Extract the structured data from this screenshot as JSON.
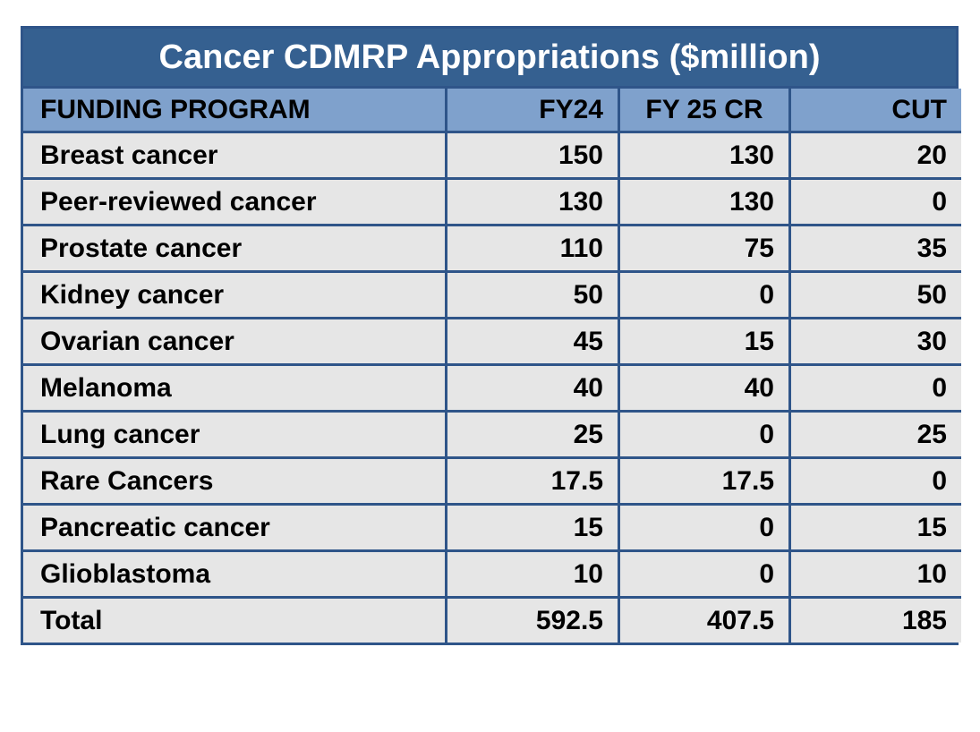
{
  "title": "Cancer CDMRP Appropriations ($million)",
  "headers": [
    "FUNDING PROGRAM",
    "FY24",
    "FY 25 CR",
    "CUT"
  ],
  "rows": [
    [
      "Breast cancer",
      "150",
      "130",
      "20"
    ],
    [
      "Peer-reviewed cancer",
      "130",
      "130",
      "0"
    ],
    [
      "Prostate cancer",
      "110",
      "75",
      "35"
    ],
    [
      "Kidney cancer",
      "50",
      "0",
      "50"
    ],
    [
      "Ovarian cancer",
      "45",
      "15",
      "30"
    ],
    [
      "Melanoma",
      "40",
      "40",
      "0"
    ],
    [
      "Lung cancer",
      "25",
      "0",
      "25"
    ],
    [
      "Rare Cancers",
      "17.5",
      "17.5",
      "0"
    ],
    [
      "Pancreatic cancer",
      "15",
      "0",
      "15"
    ],
    [
      "Glioblastoma",
      "10",
      "0",
      "10"
    ],
    [
      "Total",
      "592.5",
      "407.5",
      "185"
    ]
  ],
  "colors": {
    "title_bg": "#356090",
    "header_bg": "#7fa1cc",
    "cell_bg": "#e6e6e6",
    "border": "#2f5589"
  }
}
